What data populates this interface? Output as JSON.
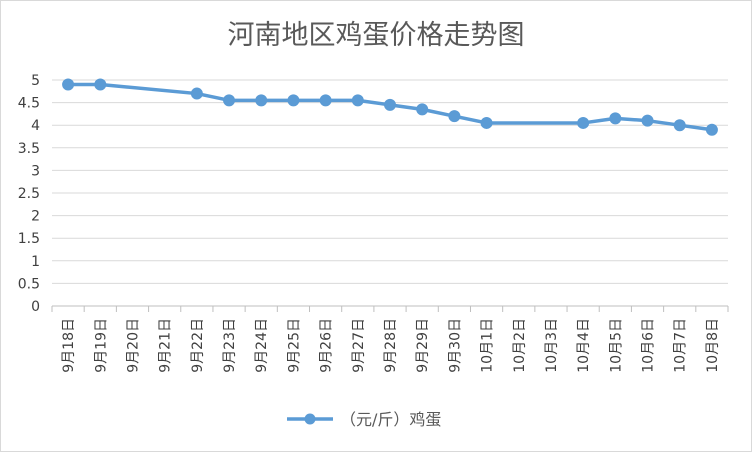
{
  "chart_data": {
    "type": "line",
    "title": "河南地区鸡蛋价格走势图",
    "xlabel": "",
    "ylabel": "",
    "ylim": [
      0,
      5
    ],
    "yticks": [
      "0",
      "0.5",
      "1",
      "1.5",
      "2",
      "2.5",
      "3",
      "3.5",
      "4",
      "4.5",
      "5"
    ],
    "grid": true,
    "legend_position": "bottom",
    "categories": [
      "9月18日",
      "9月19日",
      "9月20日",
      "9月21日",
      "9月22日",
      "9月23日",
      "9月24日",
      "9月25日",
      "9月26日",
      "9月27日",
      "9月28日",
      "9月29日",
      "9月30日",
      "10月1日",
      "10月2日",
      "10月3日",
      "10月4日",
      "10月5日",
      "10月6日",
      "10月7日",
      "10月8日"
    ],
    "series": [
      {
        "name": "（元/斤）鸡蛋",
        "color": "#5b9bd5",
        "values": [
          4.9,
          4.9,
          null,
          null,
          4.7,
          4.55,
          4.55,
          4.55,
          4.55,
          4.55,
          4.45,
          4.35,
          4.2,
          4.05,
          null,
          null,
          4.05,
          4.15,
          4.1,
          4.0,
          3.9
        ]
      }
    ]
  }
}
